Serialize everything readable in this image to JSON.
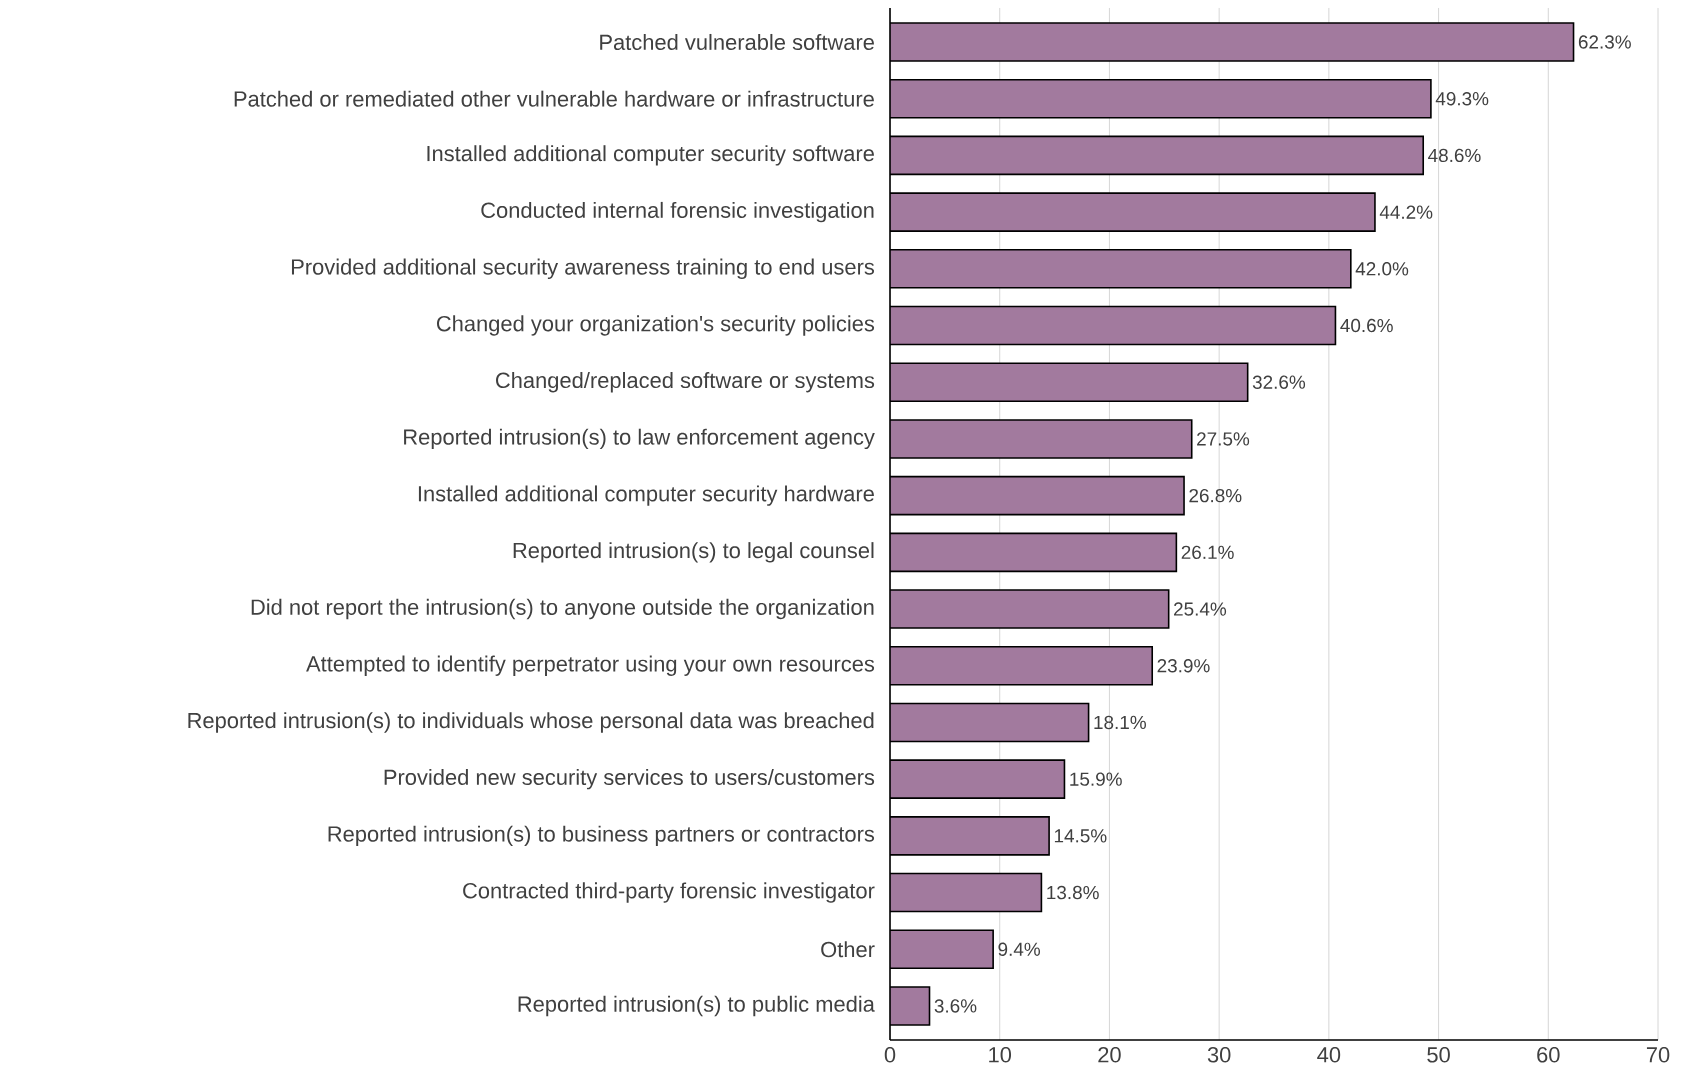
{
  "chart_data": {
    "type": "bar",
    "orientation": "horizontal",
    "categories": [
      "Patched vulnerable software",
      "Patched or remediated other vulnerable hardware or infrastructure",
      "Installed additional computer security software",
      "Conducted internal forensic investigation",
      "Provided additional security awareness training to end users",
      "Changed your organization's security policies",
      "Changed/replaced software or systems",
      "Reported intrusion(s) to law enforcement agency",
      "Installed additional computer security hardware",
      "Reported intrusion(s) to legal counsel",
      "Did not report the intrusion(s) to anyone outside the organization",
      "Attempted to identify perpetrator using your own resources",
      "Reported intrusion(s) to individuals whose personal data was breached",
      "Provided new security services to users/customers",
      "Reported intrusion(s) to business partners or contractors",
      "Contracted third-party forensic investigator",
      "Other",
      "Reported intrusion(s) to public media"
    ],
    "values": [
      62.3,
      49.3,
      48.6,
      44.2,
      42.0,
      40.6,
      32.6,
      27.5,
      26.8,
      26.1,
      25.4,
      23.9,
      18.1,
      15.9,
      14.5,
      13.8,
      9.4,
      3.6
    ],
    "value_labels": [
      "62.3%",
      "49.3%",
      "48.6%",
      "44.2%",
      "42.0%",
      "40.6%",
      "32.6%",
      "27.5%",
      "26.8%",
      "26.1%",
      "25.4%",
      "23.9%",
      "18.1%",
      "15.9%",
      "14.5%",
      "13.8%",
      "9.4%",
      "3.6%"
    ],
    "color": "#a27a9e",
    "xlim": [
      0,
      70
    ],
    "xticks": [
      0,
      10,
      20,
      30,
      40,
      50,
      60,
      70
    ],
    "grid": "x"
  }
}
